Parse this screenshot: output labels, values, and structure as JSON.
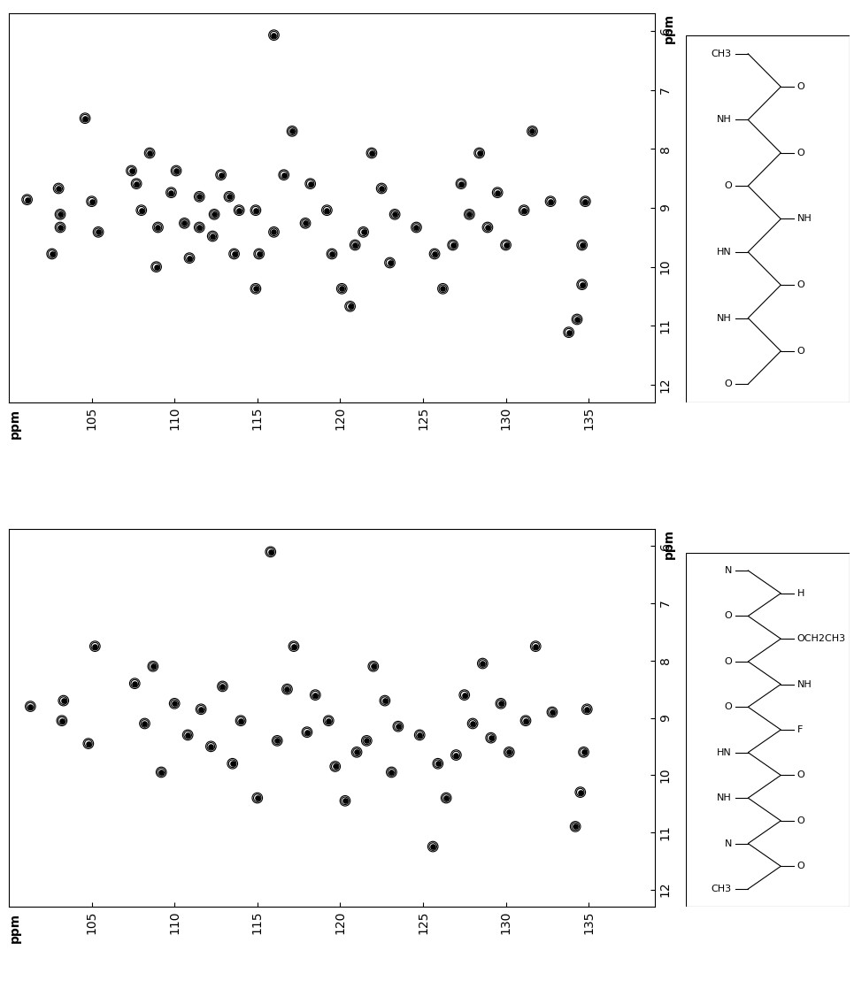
{
  "chart_data": [
    {
      "type": "contour",
      "xlabel": "ppm",
      "ylabel": "ppm",
      "xlim": [
        100,
        139
      ],
      "ylim": [
        12.3,
        5.7
      ],
      "xticks": [
        105,
        110,
        115,
        120,
        125,
        130,
        135
      ],
      "yticks": [
        6,
        7,
        8,
        9,
        10,
        11,
        12
      ],
      "tick_labels": true,
      "color": "#000000",
      "x": [
        101.1,
        103.0,
        103.1,
        103.1,
        102.6,
        104.6,
        105.0,
        105.4,
        107.4,
        107.7,
        108.0,
        108.5,
        108.9,
        109.0,
        110.1,
        109.8,
        110.6,
        110.9,
        111.5,
        111.5,
        112.3,
        112.4,
        112.8,
        113.3,
        113.6,
        113.9,
        114.9,
        115.1,
        114.9,
        116.0,
        116.0,
        116.6,
        117.1,
        117.9,
        118.2,
        119.2,
        119.5,
        120.1,
        120.6,
        120.9,
        121.4,
        121.9,
        122.5,
        123.0,
        123.3,
        124.6,
        125.7,
        126.2,
        126.8,
        127.3,
        127.8,
        128.4,
        128.9,
        129.5,
        130.0,
        131.1,
        131.6,
        132.7,
        134.8,
        134.6,
        134.6,
        134.3,
        133.8
      ],
      "y": [
        8.86,
        8.67,
        9.11,
        9.33,
        9.78,
        7.48,
        8.89,
        9.41,
        8.37,
        8.59,
        9.04,
        8.07,
        10.0,
        9.33,
        8.37,
        8.74,
        9.26,
        9.85,
        8.81,
        9.33,
        9.48,
        9.11,
        8.44,
        8.81,
        9.78,
        9.04,
        9.04,
        9.78,
        10.37,
        6.07,
        9.41,
        8.44,
        7.7,
        9.26,
        8.59,
        9.04,
        9.78,
        10.37,
        10.67,
        9.63,
        9.41,
        8.07,
        8.67,
        9.93,
        9.11,
        9.33,
        9.78,
        10.37,
        9.63,
        8.59,
        9.11,
        8.07,
        9.33,
        8.74,
        9.63,
        9.04,
        7.7,
        8.89,
        8.89,
        9.63,
        10.3,
        10.89,
        11.11
      ],
      "structure_labels": [
        "CH3",
        "O",
        "NH",
        "O",
        "O",
        "NH",
        "HN",
        "O",
        "NH",
        "O",
        "O"
      ]
    },
    {
      "type": "contour",
      "xlabel": "ppm",
      "ylabel": "ppm",
      "xlim": [
        100,
        139
      ],
      "ylim": [
        12.3,
        5.7
      ],
      "xticks": [
        105,
        110,
        115,
        120,
        125,
        130,
        135
      ],
      "yticks": [
        6,
        7,
        8,
        9,
        10,
        11,
        12
      ],
      "tick_labels": true,
      "color": "#000000",
      "x": [
        101.3,
        103.3,
        103.2,
        104.8,
        105.2,
        107.6,
        108.2,
        108.7,
        109.2,
        110.0,
        110.8,
        111.6,
        112.2,
        112.9,
        113.5,
        114.0,
        115.0,
        115.8,
        116.2,
        116.8,
        117.2,
        118.0,
        118.5,
        119.3,
        119.7,
        120.3,
        121.0,
        121.6,
        122.0,
        122.7,
        123.1,
        123.5,
        124.8,
        125.6,
        125.9,
        126.4,
        127.0,
        127.5,
        128.0,
        128.6,
        129.1,
        129.7,
        130.2,
        131.2,
        131.8,
        132.8,
        134.9,
        134.7,
        134.5,
        134.2
      ],
      "y": [
        8.8,
        8.7,
        9.05,
        9.45,
        7.75,
        8.4,
        9.1,
        8.1,
        9.95,
        8.75,
        9.3,
        8.85,
        9.5,
        8.45,
        9.8,
        9.05,
        10.4,
        6.1,
        9.4,
        8.5,
        7.75,
        9.25,
        8.6,
        9.05,
        9.85,
        10.45,
        9.6,
        9.4,
        8.1,
        8.7,
        9.95,
        9.15,
        9.3,
        11.25,
        9.8,
        10.4,
        9.65,
        8.6,
        9.1,
        8.05,
        9.35,
        8.75,
        9.6,
        9.05,
        7.75,
        8.9,
        8.85,
        9.6,
        10.3,
        10.9
      ],
      "structure_labels": [
        "N",
        "H",
        "O",
        "OCH2CH3",
        "O",
        "NH",
        "O",
        "F",
        "HN",
        "O",
        "NH",
        "O",
        "N",
        "O",
        "CH3"
      ]
    }
  ]
}
